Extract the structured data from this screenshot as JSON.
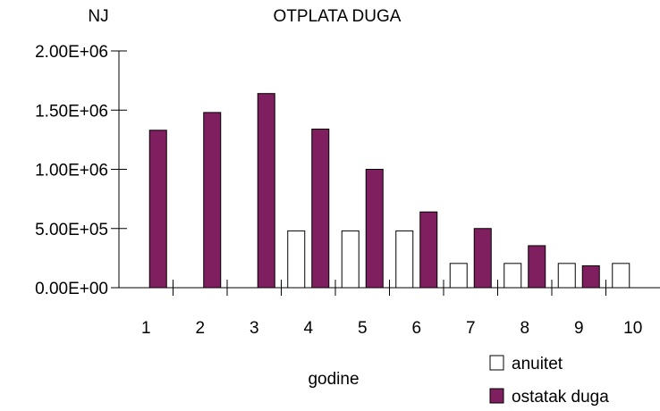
{
  "chart_data": {
    "type": "bar",
    "title": "OTPLATA DUGA",
    "ylabel": "NJ",
    "xlabel": "godine",
    "categories": [
      "1",
      "2",
      "3",
      "4",
      "5",
      "6",
      "7",
      "8",
      "9",
      "10"
    ],
    "series": [
      {
        "name": "anuitet",
        "values": [
          0,
          0,
          0,
          480000,
          480000,
          480000,
          205000,
          205000,
          205000,
          205000
        ],
        "color": "#ffffff"
      },
      {
        "name": "ostatak duga",
        "values": [
          1330000,
          1480000,
          1640000,
          1340000,
          1000000,
          640000,
          500000,
          355000,
          185000,
          0
        ],
        "color": "#7f1f5f"
      }
    ],
    "ylim": [
      0,
      2000000
    ],
    "yticks": [
      0,
      500000,
      1000000,
      1500000,
      2000000
    ],
    "ytick_labels": [
      "0.00E+00",
      "5.00E+05",
      "1.00E+06",
      "1.50E+06",
      "2.00E+06"
    ],
    "grid": false,
    "legend_position": "bottom-right"
  }
}
